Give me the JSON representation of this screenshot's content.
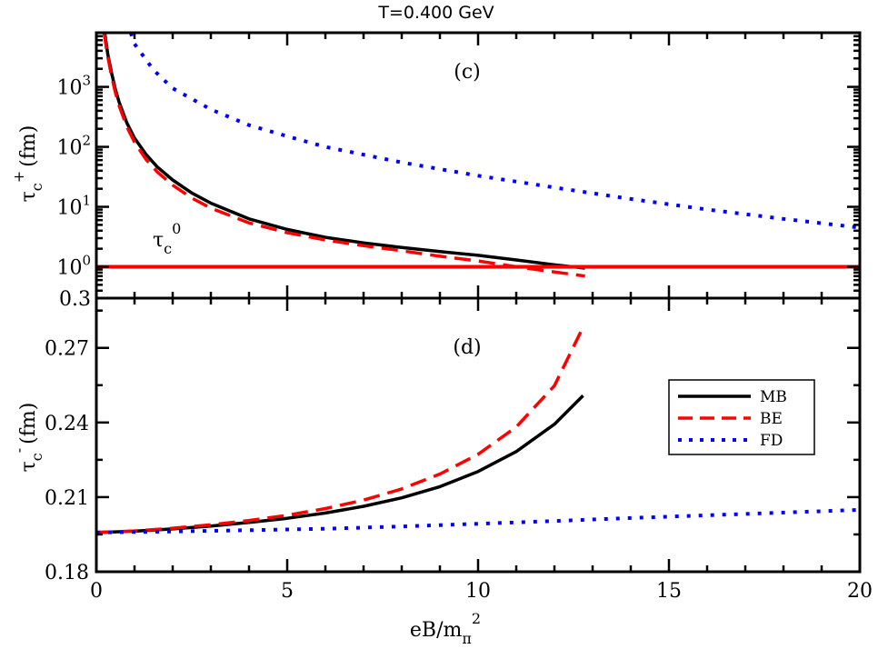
{
  "title": "T=0.400 GeV",
  "xlabel": {
    "main": "eB/m",
    "sub": "π",
    "sup": "2"
  },
  "colors": {
    "MB": "#000000",
    "BE": "#ff0000",
    "FD": "#0000ff",
    "tau0": "#ff0000"
  },
  "legend": [
    "MB",
    "BE",
    "FD"
  ],
  "chart_data": [
    {
      "type": "line",
      "panel": "(c)",
      "title": "T=0.400 GeV",
      "ylabel": {
        "main": "τ",
        "sub": "c",
        "sup": "+",
        "unit": "(fm)"
      },
      "yscale": "log",
      "xlim": [
        0,
        20
      ],
      "ylim": [
        0.3,
        8000
      ],
      "xticks": [
        0,
        5,
        10,
        15,
        20
      ],
      "yticks": [
        {
          "value": 0.3,
          "label": "0.3",
          "base": "",
          "exp": ""
        },
        {
          "value": 1,
          "label": "",
          "base": "10",
          "exp": "0"
        },
        {
          "value": 10,
          "label": "",
          "base": "10",
          "exp": "1"
        },
        {
          "value": 100,
          "label": "",
          "base": "10",
          "exp": "2"
        },
        {
          "value": 1000,
          "label": "",
          "base": "10",
          "exp": "3"
        }
      ],
      "grid": false,
      "annotation": {
        "main": "τ",
        "sub": "c",
        "sup": "0"
      },
      "series": [
        {
          "name": "MB",
          "style": "solid",
          "x": [
            0.22,
            0.3,
            0.4,
            0.5,
            0.6,
            0.8,
            1.0,
            1.3,
            1.6,
            2.0,
            2.5,
            3.0,
            4.0,
            5.0,
            6.0,
            7.0,
            8.0,
            9.0,
            10.0,
            11.0,
            12.0,
            12.8
          ],
          "y": [
            8000,
            3500,
            1700,
            900,
            550,
            250,
            140,
            75,
            46,
            28,
            17,
            11.5,
            6.3,
            4.2,
            3.1,
            2.5,
            2.1,
            1.8,
            1.55,
            1.3,
            1.08,
            0.95
          ]
        },
        {
          "name": "BE",
          "style": "dashed",
          "x": [
            0.2,
            0.3,
            0.4,
            0.5,
            0.6,
            0.8,
            1.0,
            1.3,
            1.6,
            2.0,
            2.5,
            3.0,
            4.0,
            5.0,
            6.0,
            7.0,
            8.0,
            9.0,
            10.0,
            11.0,
            12.0,
            12.8
          ],
          "y": [
            8000,
            3200,
            1500,
            800,
            480,
            215,
            120,
            62,
            38,
            23,
            14,
            9.5,
            5.4,
            3.7,
            2.8,
            2.25,
            1.85,
            1.5,
            1.25,
            1.0,
            0.82,
            0.7
          ]
        },
        {
          "name": "FD",
          "style": "dotted",
          "x": [
            0.9,
            1.0,
            1.5,
            2.0,
            3.0,
            4.0,
            5.0,
            6.0,
            8.0,
            10.0,
            12.0,
            14.0,
            16.0,
            18.0,
            20.0
          ],
          "y": [
            8000,
            5200,
            1900,
            950,
            420,
            230,
            150,
            100,
            55,
            33,
            21,
            13.5,
            9,
            6.3,
            4.5
          ]
        },
        {
          "name": "τc0",
          "style": "solid",
          "x": [
            0,
            20
          ],
          "y": [
            1.0,
            1.0
          ]
        }
      ]
    },
    {
      "type": "line",
      "panel": "(d)",
      "ylabel": {
        "main": "τ",
        "sub": "c",
        "sup": "-",
        "unit": "(fm)"
      },
      "yscale": "linear",
      "xlabel": "eB/mπ2",
      "xlim": [
        0,
        20
      ],
      "ylim": [
        0.18,
        0.29
      ],
      "xticks": [
        0,
        5,
        10,
        15,
        20
      ],
      "yticks": [
        {
          "value": 0.18,
          "label": "0.18"
        },
        {
          "value": 0.21,
          "label": "0.21"
        },
        {
          "value": 0.24,
          "label": "0.24"
        },
        {
          "value": 0.27,
          "label": "0.27"
        }
      ],
      "grid": false,
      "legend_position": "right",
      "series": [
        {
          "name": "MB",
          "style": "solid",
          "x": [
            0,
            1,
            2,
            3,
            4,
            5,
            6,
            7,
            8,
            9,
            10,
            11,
            12,
            12.75
          ],
          "y": [
            0.1958,
            0.1963,
            0.1972,
            0.1984,
            0.1998,
            0.2015,
            0.2036,
            0.2063,
            0.2097,
            0.2142,
            0.2203,
            0.2283,
            0.2393,
            0.2508
          ]
        },
        {
          "name": "BE",
          "style": "dashed",
          "x": [
            0,
            1,
            2,
            3,
            4,
            5,
            6,
            7,
            8,
            9,
            10,
            11,
            12,
            12.75
          ],
          "y": [
            0.1958,
            0.1964,
            0.1975,
            0.1989,
            0.2006,
            0.2027,
            0.2054,
            0.2088,
            0.2133,
            0.2193,
            0.2272,
            0.2382,
            0.2548,
            0.2783
          ]
        },
        {
          "name": "FD",
          "style": "dotted",
          "x": [
            0,
            2,
            4,
            6,
            8,
            10,
            12,
            14,
            16,
            18,
            20
          ],
          "y": [
            0.1958,
            0.1962,
            0.1967,
            0.1973,
            0.1982,
            0.1993,
            0.2004,
            0.2016,
            0.2027,
            0.2038,
            0.2049
          ]
        }
      ]
    }
  ]
}
